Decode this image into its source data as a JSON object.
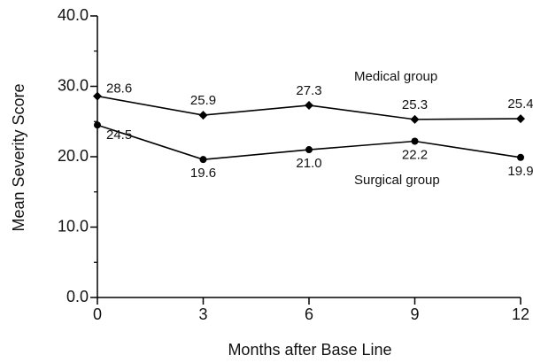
{
  "chart_data": {
    "type": "line",
    "x_label": "Months after Base Line",
    "y_label": "Mean Severity Score",
    "x": [
      0,
      3,
      6,
      9,
      12
    ],
    "series": [
      {
        "name": "Medical group",
        "color": "#000000",
        "marker": "diamond",
        "values": [
          28.6,
          25.9,
          27.3,
          25.3,
          25.4
        ]
      },
      {
        "name": "Surgical group",
        "color": "#000000",
        "marker": "circle",
        "values": [
          24.5,
          19.6,
          21.0,
          22.2,
          19.9
        ],
        "value_labels": [
          "24.5",
          "19.6",
          "21.0",
          "22.2",
          "19.9"
        ]
      }
    ],
    "xlim": [
      0,
      12
    ],
    "xticks": [
      0,
      3,
      6,
      9,
      12
    ],
    "ylim": [
      0,
      40
    ],
    "yticks": [
      {
        "value": 0,
        "label": "0.0"
      },
      {
        "value": 10,
        "label": "10.0"
      },
      {
        "value": 20,
        "label": "20.0"
      },
      {
        "value": 30,
        "label": "30.0"
      },
      {
        "value": 40,
        "label": "40.0"
      }
    ],
    "yminor_ticks": [
      5,
      15,
      25,
      35
    ],
    "grid": false
  }
}
